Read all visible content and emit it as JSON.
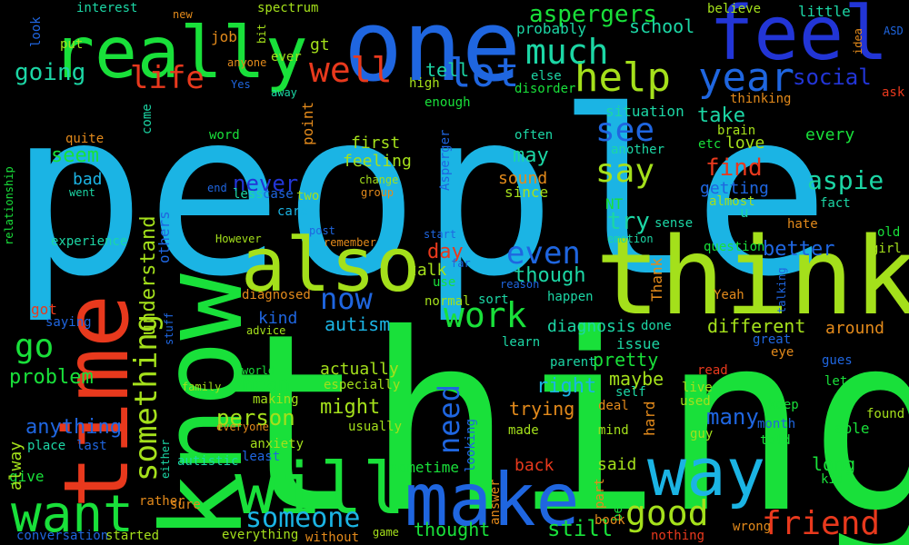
{
  "background": "#000000",
  "palette": {
    "cyan": "#1bb4e4",
    "green": "#19e03a",
    "lime": "#a4e01b",
    "blue": "#1f66e0",
    "red": "#e8391d",
    "teal": "#1cd6a5",
    "orange": "#e38a1b",
    "royal": "#2235d6"
  },
  "words": [
    {
      "text": "people",
      "color": "#1bb4e4"
    },
    {
      "text": "thing",
      "color": "#19e03a"
    },
    {
      "text": "know",
      "color": "#19e03a"
    },
    {
      "text": "think",
      "color": "#a4e01b"
    },
    {
      "text": "one",
      "color": "#1f66e0"
    },
    {
      "text": "feel",
      "color": "#2235d6"
    },
    {
      "text": "really",
      "color": "#19e03a"
    },
    {
      "text": "time",
      "color": "#e8391d"
    },
    {
      "text": "also",
      "color": "#a4e01b"
    },
    {
      "text": "will",
      "color": "#19e03a"
    },
    {
      "text": "make",
      "color": "#1f66e0"
    },
    {
      "text": "way",
      "color": "#1bb4e4"
    },
    {
      "text": "want",
      "color": "#19e03a"
    },
    {
      "text": "something",
      "color": "#a4e01b"
    },
    {
      "text": "help",
      "color": "#a4e01b"
    },
    {
      "text": "much",
      "color": "#1cd6a5"
    },
    {
      "text": "lot",
      "color": "#1f66e0"
    },
    {
      "text": "year",
      "color": "#1f66e0"
    },
    {
      "text": "life",
      "color": "#e8391d"
    },
    {
      "text": "well",
      "color": "#e8391d"
    },
    {
      "text": "going",
      "color": "#1cd6a5"
    },
    {
      "text": "aspergers",
      "color": "#19e03a"
    },
    {
      "text": "school",
      "color": "#1cd6a5"
    },
    {
      "text": "say",
      "color": "#a4e01b"
    },
    {
      "text": "see",
      "color": "#1f66e0"
    },
    {
      "text": "now",
      "color": "#1f66e0"
    },
    {
      "text": "work",
      "color": "#19e03a"
    },
    {
      "text": "go",
      "color": "#19e03a"
    },
    {
      "text": "good",
      "color": "#a4e01b"
    },
    {
      "text": "friend",
      "color": "#e8391d"
    },
    {
      "text": "someone",
      "color": "#1bb4e4"
    },
    {
      "text": "even",
      "color": "#1f66e0"
    },
    {
      "text": "need",
      "color": "#1f66e0"
    },
    {
      "text": "find",
      "color": "#e8391d"
    },
    {
      "text": "social",
      "color": "#2235d6"
    },
    {
      "text": "aspie",
      "color": "#1cd6a5"
    },
    {
      "text": "understand",
      "color": "#a4e01b"
    },
    {
      "text": "never",
      "color": "#2235d6"
    },
    {
      "text": "problem",
      "color": "#19e03a"
    },
    {
      "text": "person",
      "color": "#a4e01b"
    },
    {
      "text": "still",
      "color": "#19e03a"
    },
    {
      "text": "thought",
      "color": "#19e03a"
    },
    {
      "text": "many",
      "color": "#1f66e0"
    },
    {
      "text": "better",
      "color": "#1f66e0"
    },
    {
      "text": "different",
      "color": "#a4e01b"
    },
    {
      "text": "autism",
      "color": "#1bb4e4"
    },
    {
      "text": "might",
      "color": "#a4e01b"
    },
    {
      "text": "though",
      "color": "#1cd6a5"
    },
    {
      "text": "diagnosis",
      "color": "#1cd6a5"
    },
    {
      "text": "try",
      "color": "#1cd6a5"
    },
    {
      "text": "take",
      "color": "#1cd6a5"
    },
    {
      "text": "day",
      "color": "#e8391d"
    },
    {
      "text": "tell",
      "color": "#1cd6a5"
    },
    {
      "text": "seem",
      "color": "#19e03a"
    },
    {
      "text": "anything",
      "color": "#1f66e0"
    },
    {
      "text": "mean",
      "color": "#19e03a"
    },
    {
      "text": "long",
      "color": "#19e03a"
    },
    {
      "text": "right",
      "color": "#1bb4e4"
    },
    {
      "text": "actually",
      "color": "#a4e01b"
    },
    {
      "text": "feeling",
      "color": "#a4e01b"
    },
    {
      "text": "first",
      "color": "#a4e01b"
    },
    {
      "text": "may",
      "color": "#1cd6a5"
    },
    {
      "text": "talk",
      "color": "#a4e01b"
    },
    {
      "text": "pretty",
      "color": "#19e03a"
    },
    {
      "text": "trying",
      "color": "#e38a1b"
    },
    {
      "text": "maybe",
      "color": "#a4e01b"
    },
    {
      "text": "love",
      "color": "#a4e01b"
    },
    {
      "text": "every",
      "color": "#19e03a"
    },
    {
      "text": "getting",
      "color": "#1f66e0"
    },
    {
      "text": "around",
      "color": "#e38a1b"
    },
    {
      "text": "bad",
      "color": "#1bb4e4"
    },
    {
      "text": "kind",
      "color": "#1f66e0"
    },
    {
      "text": "got",
      "color": "#e8391d"
    },
    {
      "text": "give",
      "color": "#19e03a"
    },
    {
      "text": "alway",
      "color": "#a4e01b"
    },
    {
      "text": "back",
      "color": "#e8391d"
    },
    {
      "text": "said",
      "color": "#a4e01b"
    },
    {
      "text": "sometime",
      "color": "#19e03a"
    },
    {
      "text": "sound",
      "color": "#e38a1b"
    },
    {
      "text": "since",
      "color": "#a4e01b"
    },
    {
      "text": "probably",
      "color": "#1cd6a5"
    },
    {
      "text": "little",
      "color": "#1cd6a5"
    },
    {
      "text": "job",
      "color": "#e38a1b"
    },
    {
      "text": "gt",
      "color": "#a4e01b"
    },
    {
      "text": "look",
      "color": "#1f66e0"
    },
    {
      "text": "Thank",
      "color": "#e38a1b"
    },
    {
      "text": "issue",
      "color": "#1cd6a5"
    },
    {
      "text": "able",
      "color": "#19e03a"
    },
    {
      "text": "situation",
      "color": "#1cd6a5"
    },
    {
      "text": "others",
      "color": "#1f66e0"
    },
    {
      "text": "part",
      "color": "#e38a1b"
    },
    {
      "text": "hard",
      "color": "#e38a1b"
    },
    {
      "text": "best",
      "color": "#19e03a"
    },
    {
      "text": "u",
      "color": "#1cd6a5"
    },
    {
      "text": "NT",
      "color": "#19e03a"
    },
    {
      "text": "often",
      "color": "#1cd6a5"
    },
    {
      "text": "another",
      "color": "#1cd6a5"
    },
    {
      "text": "brain",
      "color": "#a4e01b"
    },
    {
      "text": "etc",
      "color": "#19e03a"
    },
    {
      "text": "almost",
      "color": "#a4e01b"
    },
    {
      "text": "sense",
      "color": "#1cd6a5"
    },
    {
      "text": "fact",
      "color": "#1cd6a5"
    },
    {
      "text": "Asperger",
      "color": "#1f66e0"
    },
    {
      "text": "group",
      "color": "#e38a1b"
    },
    {
      "text": "change",
      "color": "#a4e01b"
    },
    {
      "text": "interest",
      "color": "#1cd6a5"
    },
    {
      "text": "new",
      "color": "#e38a1b"
    },
    {
      "text": "spectrum",
      "color": "#a4e01b"
    },
    {
      "text": "put",
      "color": "#a4e01b"
    },
    {
      "text": "bit",
      "color": "#a4e01b"
    },
    {
      "text": "ever",
      "color": "#a4e01b"
    },
    {
      "text": "anyone",
      "color": "#e38a1b"
    },
    {
      "text": "Yes",
      "color": "#1f66e0"
    },
    {
      "text": "away",
      "color": "#1cd6a5"
    },
    {
      "text": "come",
      "color": "#1cd6a5"
    },
    {
      "text": "point",
      "color": "#e38a1b"
    },
    {
      "text": "high",
      "color": "#a4e01b"
    },
    {
      "text": "enough",
      "color": "#19e03a"
    },
    {
      "text": "else",
      "color": "#1cd6a5"
    },
    {
      "text": "disorder",
      "color": "#19e03a"
    },
    {
      "text": "believe",
      "color": "#a4e01b"
    },
    {
      "text": "idea",
      "color": "#e38a1b"
    },
    {
      "text": "ASD",
      "color": "#1f66e0"
    },
    {
      "text": "ask",
      "color": "#e8391d"
    },
    {
      "text": "thinking",
      "color": "#e38a1b"
    },
    {
      "text": "quite",
      "color": "#e38a1b"
    },
    {
      "text": "word",
      "color": "#19e03a"
    },
    {
      "text": "went",
      "color": "#1cd6a5"
    },
    {
      "text": "end",
      "color": "#1f66e0"
    },
    {
      "text": "less",
      "color": "#1cd6a5"
    },
    {
      "text": "case",
      "color": "#1f66e0"
    },
    {
      "text": "two",
      "color": "#a4e01b"
    },
    {
      "text": "care",
      "color": "#1bb4e4"
    },
    {
      "text": "relationship",
      "color": "#19e03a"
    },
    {
      "text": "experience",
      "color": "#1cd6a5"
    },
    {
      "text": "However",
      "color": "#a4e01b"
    },
    {
      "text": "post",
      "color": "#1f66e0"
    },
    {
      "text": "remember",
      "color": "#e38a1b"
    },
    {
      "text": "start",
      "color": "#1f66e0"
    },
    {
      "text": "far",
      "color": "#1f66e0"
    },
    {
      "text": "use",
      "color": "#19e03a"
    },
    {
      "text": "reason",
      "color": "#1f66e0"
    },
    {
      "text": "emotion",
      "color": "#1cd6a5"
    },
    {
      "text": "question",
      "color": "#19e03a"
    },
    {
      "text": "hate",
      "color": "#e38a1b"
    },
    {
      "text": "old",
      "color": "#19e03a"
    },
    {
      "text": "girl",
      "color": "#a4e01b"
    },
    {
      "text": "diagnosed",
      "color": "#e38a1b"
    },
    {
      "text": "normal",
      "color": "#a4e01b"
    },
    {
      "text": "sort",
      "color": "#1cd6a5"
    },
    {
      "text": "happen",
      "color": "#1cd6a5"
    },
    {
      "text": "Yeah",
      "color": "#e38a1b"
    },
    {
      "text": "talking",
      "color": "#1f66e0"
    },
    {
      "text": "saying",
      "color": "#1f66e0"
    },
    {
      "text": "stuff",
      "color": "#1f66e0"
    },
    {
      "text": "advice",
      "color": "#a4e01b"
    },
    {
      "text": "learn",
      "color": "#1cd6a5"
    },
    {
      "text": "done",
      "color": "#1cd6a5"
    },
    {
      "text": "great",
      "color": "#1f66e0"
    },
    {
      "text": "eye",
      "color": "#e38a1b"
    },
    {
      "text": "world",
      "color": "#19e03a"
    },
    {
      "text": "family",
      "color": "#a4e01b"
    },
    {
      "text": "making",
      "color": "#a4e01b"
    },
    {
      "text": "especially",
      "color": "#a4e01b"
    },
    {
      "text": "parent",
      "color": "#1cd6a5"
    },
    {
      "text": "read",
      "color": "#e8391d"
    },
    {
      "text": "gues",
      "color": "#1f66e0"
    },
    {
      "text": "let",
      "color": "#19e03a"
    },
    {
      "text": "self",
      "color": "#1cd6a5"
    },
    {
      "text": "live",
      "color": "#a4e01b"
    },
    {
      "text": "used",
      "color": "#a4e01b"
    },
    {
      "text": "deal",
      "color": "#e38a1b"
    },
    {
      "text": "keep",
      "color": "#19e03a"
    },
    {
      "text": "found",
      "color": "#a4e01b"
    },
    {
      "text": "everyone",
      "color": "#e38a1b"
    },
    {
      "text": "usually",
      "color": "#a4e01b"
    },
    {
      "text": "mind",
      "color": "#a4e01b"
    },
    {
      "text": "guy",
      "color": "#a4e01b"
    },
    {
      "text": "month",
      "color": "#1f66e0"
    },
    {
      "text": "told",
      "color": "#19e03a"
    },
    {
      "text": "anxiety",
      "color": "#a4e01b"
    },
    {
      "text": "place",
      "color": "#1cd6a5"
    },
    {
      "text": "last",
      "color": "#1f66e0"
    },
    {
      "text": "autistic",
      "color": "#1cd6a5"
    },
    {
      "text": "least",
      "color": "#1f66e0"
    },
    {
      "text": "looking",
      "color": "#1f66e0"
    },
    {
      "text": "made",
      "color": "#a4e01b"
    },
    {
      "text": "kid",
      "color": "#19e03a"
    },
    {
      "text": "either",
      "color": "#1cd6a5"
    },
    {
      "text": "rather",
      "color": "#e38a1b"
    },
    {
      "text": "answer",
      "color": "#e38a1b"
    },
    {
      "text": "sure",
      "color": "#e38a1b"
    },
    {
      "text": "book",
      "color": "#e38a1b"
    },
    {
      "text": "wrong",
      "color": "#e38a1b"
    },
    {
      "text": "game",
      "color": "#a4e01b"
    },
    {
      "text": "conversation",
      "color": "#1f66e0"
    },
    {
      "text": "started",
      "color": "#a4e01b"
    },
    {
      "text": "everything",
      "color": "#a4e01b"
    },
    {
      "text": "without",
      "color": "#e38a1b"
    },
    {
      "text": "nothing",
      "color": "#e8391d"
    }
  ]
}
